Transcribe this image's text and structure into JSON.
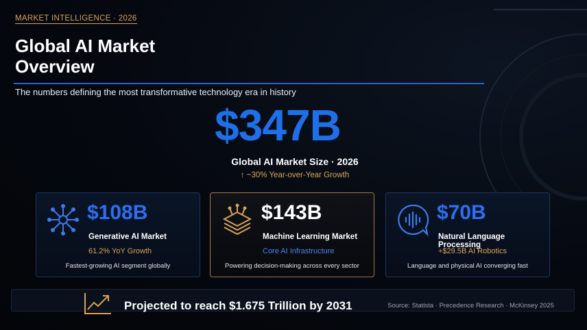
{
  "header": {
    "eyebrow": "MARKET INTELLIGENCE · 2026",
    "title": "Global AI Market Overview",
    "subtitle": "The numbers defining the most transformative technology era in history"
  },
  "hero": {
    "value": "$347B",
    "label": "Global AI Market Size · 2026",
    "growth": "↑ ~30% Year-over-Year Growth"
  },
  "cards": [
    {
      "value": "$108B",
      "name": "Generative AI Market",
      "highlight": "61.2% YoY Growth",
      "description": "Fastest-growing AI segment globally"
    },
    {
      "value": "$143B",
      "name": "Machine Learning Market",
      "highlight": "Core AI Infrastructure",
      "description": "Powering decision-making across every sector"
    },
    {
      "value": "$70B",
      "name": "Natural Language Processing",
      "highlight": "+$29.5B AI Robotics",
      "description": "Language and physical AI converging fast"
    }
  ],
  "footer": {
    "text": "Projected to reach $1.675 Trillion by 2031",
    "source": "Source: Statista · Precedence Research · McKinsey 2025"
  }
}
